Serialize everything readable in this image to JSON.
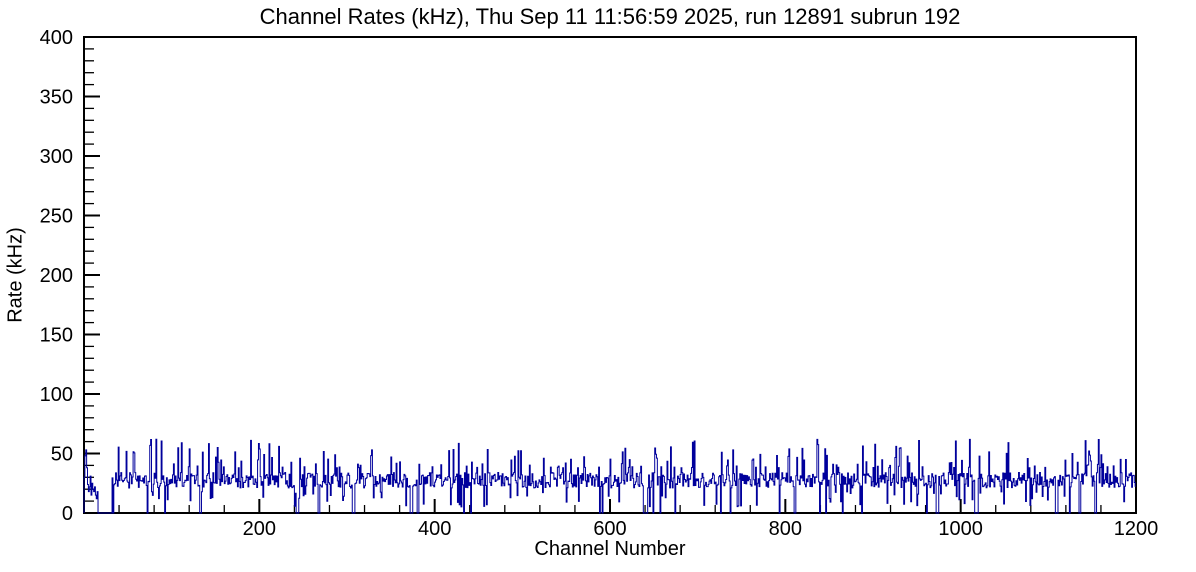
{
  "chart_data": {
    "type": "line",
    "style": "histogram-step",
    "title": "Channel Rates (kHz), Thu Sep 11 11:56:59 2025, run 12891 subrun 192",
    "xlabel": "Channel Number",
    "ylabel": "Rate (kHz)",
    "xlim": [
      0,
      1200
    ],
    "ylim": [
      0,
      400
    ],
    "x_major_ticks": [
      200,
      400,
      600,
      800,
      1000,
      1200
    ],
    "x_minor_step": 40,
    "y_major_ticks": [
      0,
      50,
      100,
      150,
      200,
      250,
      300,
      350,
      400
    ],
    "y_minor_step": 10,
    "grid": false,
    "legend": false,
    "line_color": "#00009c",
    "frame_color": "#000000",
    "n_channels": 1200,
    "series_summary": {
      "description": "Per-channel rate: dense noisy band around 20-34 kHz across all 1200 channels, frequent narrow spikes up to ~62 kHz, scattered dead channels at 0 kHz, and a fully dead block near the start",
      "baseline_khz": [
        21,
        34
      ],
      "spike_max_khz": 62,
      "typical_value_khz": 26,
      "dead_channel_value_khz": 0,
      "leading_dead_block_channels": [
        16,
        31
      ]
    },
    "procedural_series": {
      "seed": 12891,
      "lead_in": [
        30,
        48,
        53,
        38,
        24,
        18,
        22,
        31,
        15,
        25,
        20,
        18,
        22,
        15,
        12,
        18
      ],
      "gap": [
        16,
        31
      ],
      "p_zero": 0.028,
      "p_zero_repeat": 0.4,
      "p_dip": 0.05,
      "dip_range": [
        5,
        18
      ],
      "p_spike": 0.13,
      "spike_range": [
        38,
        62
      ],
      "base_range": [
        21,
        34
      ]
    }
  }
}
